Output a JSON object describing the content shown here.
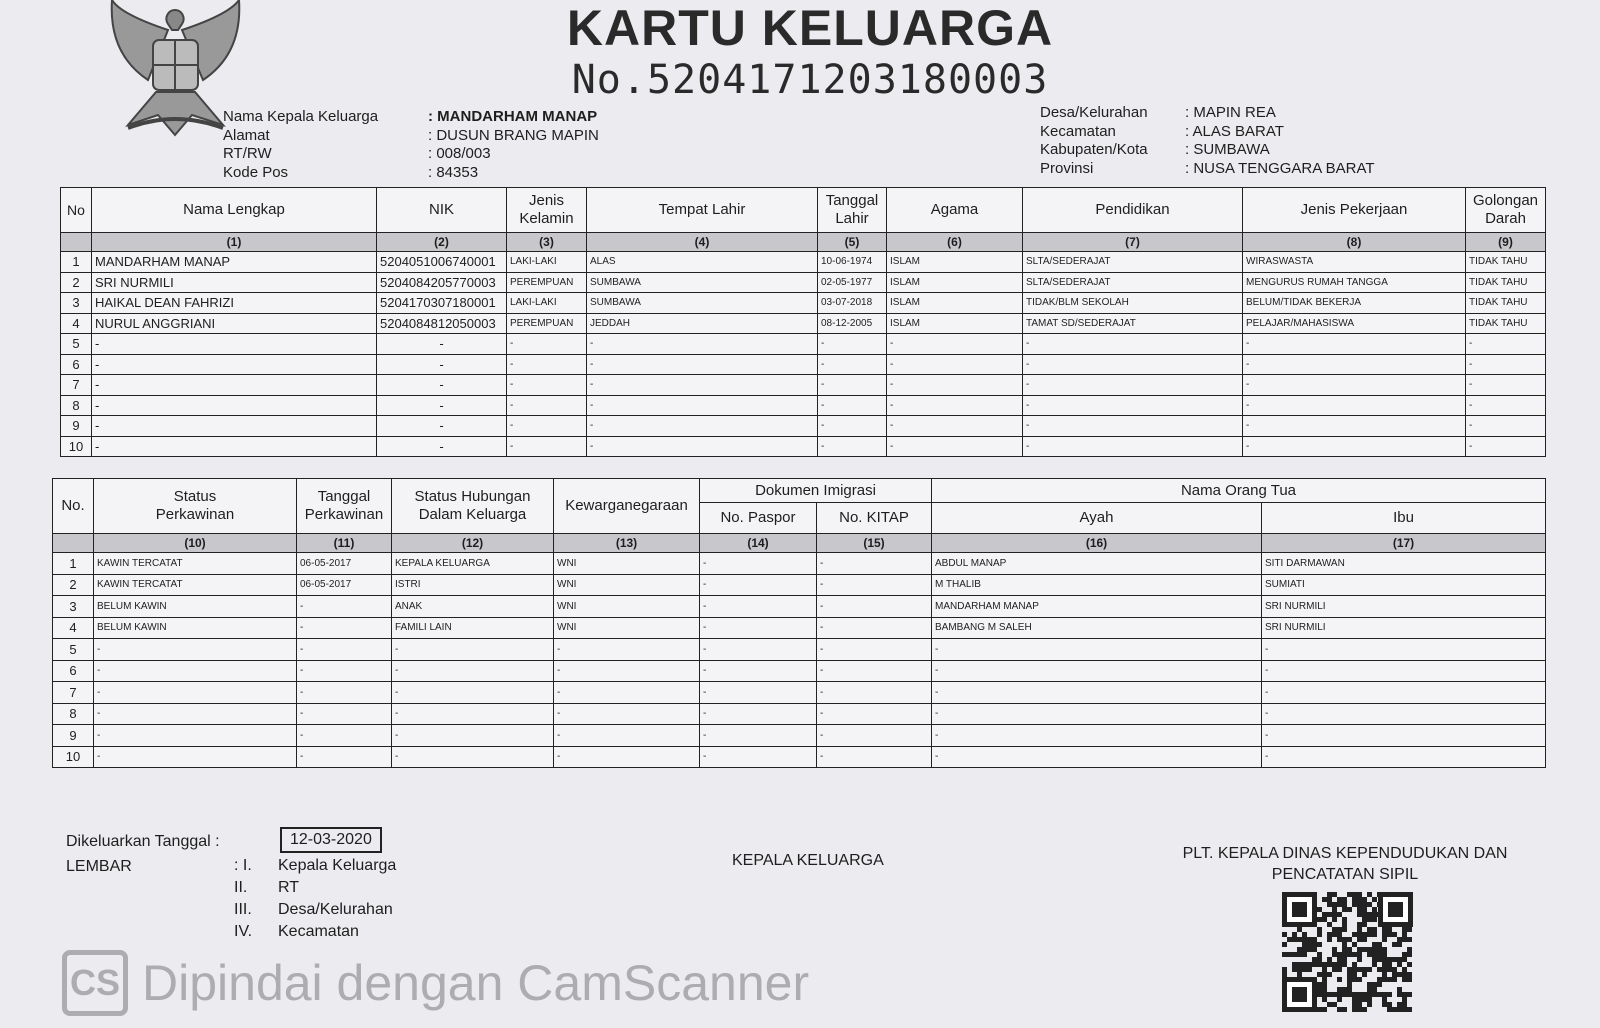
{
  "header": {
    "title": "KARTU KELUARGA",
    "number_prefix": "No.",
    "number": "5204171203180003"
  },
  "info_left": [
    {
      "label": "Nama Kepala Keluarga",
      "value": "MANDARHAM MANAP"
    },
    {
      "label": "Alamat",
      "value": "DUSUN BRANG MAPIN"
    },
    {
      "label": "RT/RW",
      "value": "008/003"
    },
    {
      "label": "Kode Pos",
      "value": "84353"
    }
  ],
  "info_right": [
    {
      "label": "Desa/Kelurahan",
      "value": "MAPIN REA"
    },
    {
      "label": "Kecamatan",
      "value": "ALAS BARAT"
    },
    {
      "label": "Kabupaten/Kota",
      "value": "SUMBAWA"
    },
    {
      "label": "Provinsi",
      "value": "NUSA TENGGARA BARAT"
    }
  ],
  "table1": {
    "headers": [
      "No",
      "Nama Lengkap",
      "NIK",
      "Jenis Kelamin",
      "Tempat Lahir",
      "Tanggal Lahir",
      "Agama",
      "Pendidikan",
      "Jenis Pekerjaan",
      "Golongan Darah"
    ],
    "col_numbers": [
      "",
      "(1)",
      "(2)",
      "(3)",
      "(4)",
      "(5)",
      "(6)",
      "(7)",
      "(8)",
      "(9)"
    ],
    "rows": [
      [
        "1",
        "MANDARHAM MANAP",
        "5204051006740001",
        "LAKI-LAKI",
        "ALAS",
        "10-06-1974",
        "ISLAM",
        "SLTA/SEDERAJAT",
        "WIRASWASTA",
        "TIDAK TAHU"
      ],
      [
        "2",
        "SRI NURMILI",
        "5204084205770003",
        "PEREMPUAN",
        "SUMBAWA",
        "02-05-1977",
        "ISLAM",
        "SLTA/SEDERAJAT",
        "MENGURUS RUMAH TANGGA",
        "TIDAK TAHU"
      ],
      [
        "3",
        "HAIKAL DEAN FAHRIZI",
        "5204170307180001",
        "LAKI-LAKI",
        "SUMBAWA",
        "03-07-2018",
        "ISLAM",
        "TIDAK/BLM SEKOLAH",
        "BELUM/TIDAK BEKERJA",
        "TIDAK TAHU"
      ],
      [
        "4",
        "NURUL ANGGRIANI",
        "5204084812050003",
        "PEREMPUAN",
        "JEDDAH",
        "08-12-2005",
        "ISLAM",
        "TAMAT SD/SEDERAJAT",
        "PELAJAR/MAHASISWA",
        "TIDAK TAHU"
      ],
      [
        "5",
        "-",
        "-",
        "-",
        "-",
        "-",
        "-",
        "-",
        "-",
        "-"
      ],
      [
        "6",
        "-",
        "-",
        "-",
        "-",
        "-",
        "-",
        "-",
        "-",
        "-"
      ],
      [
        "7",
        "-",
        "-",
        "-",
        "-",
        "-",
        "-",
        "-",
        "-",
        "-"
      ],
      [
        "8",
        "-",
        "-",
        "-",
        "-",
        "-",
        "-",
        "-",
        "-",
        "-"
      ],
      [
        "9",
        "-",
        "-",
        "-",
        "-",
        "-",
        "-",
        "-",
        "-",
        "-"
      ],
      [
        "10",
        "-",
        "-",
        "-",
        "-",
        "-",
        "-",
        "-",
        "-",
        "-"
      ]
    ]
  },
  "table2": {
    "headers": {
      "no": "No.",
      "status_perkawinan": "Status Perkawinan",
      "tanggal_perkawinan": "Tanggal Perkawinan",
      "status_hubungan": "Status Hubungan Dalam Keluarga",
      "kewarganegaraan": "Kewarganegaraan",
      "dokumen_imigrasi": "Dokumen Imigrasi",
      "no_paspor": "No. Paspor",
      "no_kitap": "No. KITAP",
      "nama_orang_tua": "Nama Orang Tua",
      "ayah": "Ayah",
      "ibu": "Ibu"
    },
    "col_numbers": [
      "",
      "(10)",
      "(11)",
      "(12)",
      "(13)",
      "(14)",
      "(15)",
      "(16)",
      "(17)"
    ],
    "rows": [
      [
        "1",
        "KAWIN TERCATAT",
        "06-05-2017",
        "KEPALA KELUARGA",
        "WNI",
        "-",
        "-",
        "ABDUL MANAP",
        "SITI DARMAWAN"
      ],
      [
        "2",
        "KAWIN TERCATAT",
        "06-05-2017",
        "ISTRI",
        "WNI",
        "-",
        "-",
        "M THALIB",
        "SUMIATI"
      ],
      [
        "3",
        "BELUM KAWIN",
        "-",
        "ANAK",
        "WNI",
        "-",
        "-",
        "MANDARHAM MANAP",
        "SRI NURMILI"
      ],
      [
        "4",
        "BELUM KAWIN",
        "-",
        "FAMILI LAIN",
        "WNI",
        "-",
        "-",
        "BAMBANG M SALEH",
        "SRI NURMILI"
      ],
      [
        "5",
        "-",
        "-",
        "-",
        "-",
        "-",
        "-",
        "-",
        "-"
      ],
      [
        "6",
        "-",
        "-",
        "-",
        "-",
        "-",
        "-",
        "-",
        "-"
      ],
      [
        "7",
        "-",
        "-",
        "-",
        "-",
        "-",
        "-",
        "-",
        "-"
      ],
      [
        "8",
        "-",
        "-",
        "-",
        "-",
        "-",
        "-",
        "-",
        "-"
      ],
      [
        "9",
        "-",
        "-",
        "-",
        "-",
        "-",
        "-",
        "-",
        "-"
      ],
      [
        "10",
        "-",
        "-",
        "-",
        "-",
        "-",
        "-",
        "-",
        "-"
      ]
    ]
  },
  "footer": {
    "issued_label": "Dikeluarkan Tanggal",
    "issued_date": "12-03-2020",
    "lembar_label": "LEMBAR",
    "lembar_items": [
      {
        "num": "I.",
        "text": "Kepala Keluarga"
      },
      {
        "num": "II.",
        "text": "RT"
      },
      {
        "num": "III.",
        "text": "Desa/Kelurahan"
      },
      {
        "num": "IV.",
        "text": "Kecamatan"
      }
    ],
    "kepala_keluarga": "KEPALA KELUARGA",
    "official_line1": "PLT. KEPALA DINAS KEPENDUDUKAN DAN",
    "official_line2": "PENCATATAN SIPIL"
  },
  "watermark": {
    "logo": "CS",
    "text": "Dipindai dengan CamScanner"
  },
  "icons": {
    "emblem": "garuda-pancasila-emblem",
    "qr": "qr-code"
  }
}
